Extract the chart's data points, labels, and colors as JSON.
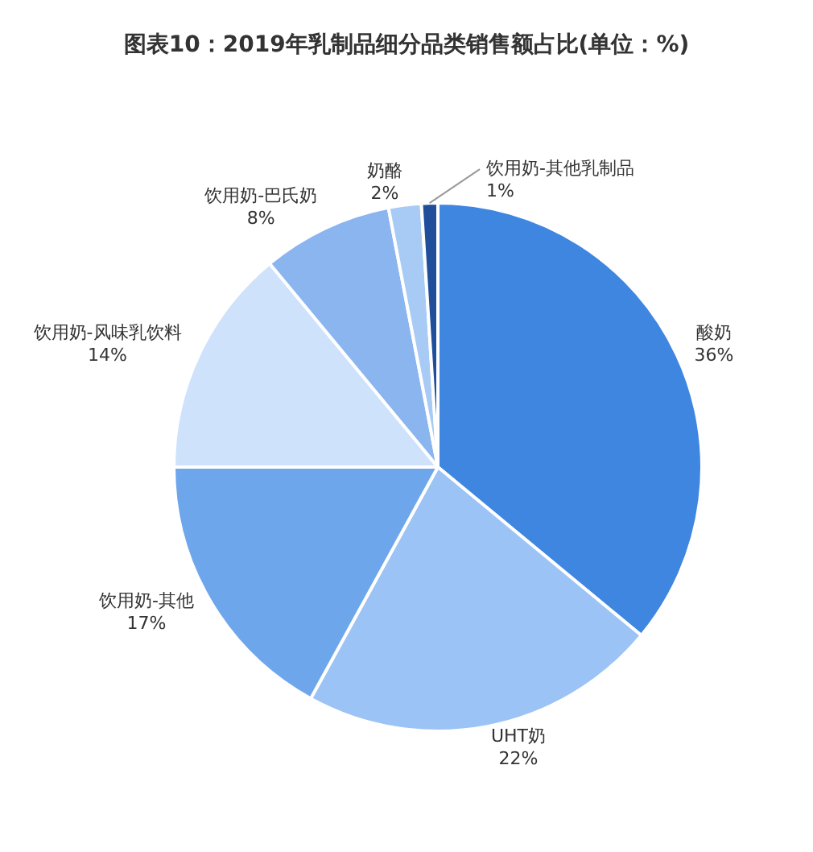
{
  "chart_data": {
    "type": "pie",
    "title": "图表10：2019年乳制品细分品类销售额占比(单位：%)",
    "categories": [
      "酸奶",
      "UHT奶",
      "饮用奶-其他",
      "饮用奶-风味乳饮料",
      "饮用奶-巴氏奶",
      "奶酪",
      "饮用奶-其他乳制品"
    ],
    "values": [
      36,
      22,
      17,
      14,
      8,
      2,
      1
    ],
    "colors": [
      "#3f86e0",
      "#9cc3f5",
      "#6ea6ec",
      "#cfe2fb",
      "#8ab5ef",
      "#a8cbf5",
      "#1f4e9a"
    ],
    "value_labels": [
      "36%",
      "22%",
      "17%",
      "14%",
      "8%",
      "2%",
      "1%"
    ],
    "legend": false
  }
}
